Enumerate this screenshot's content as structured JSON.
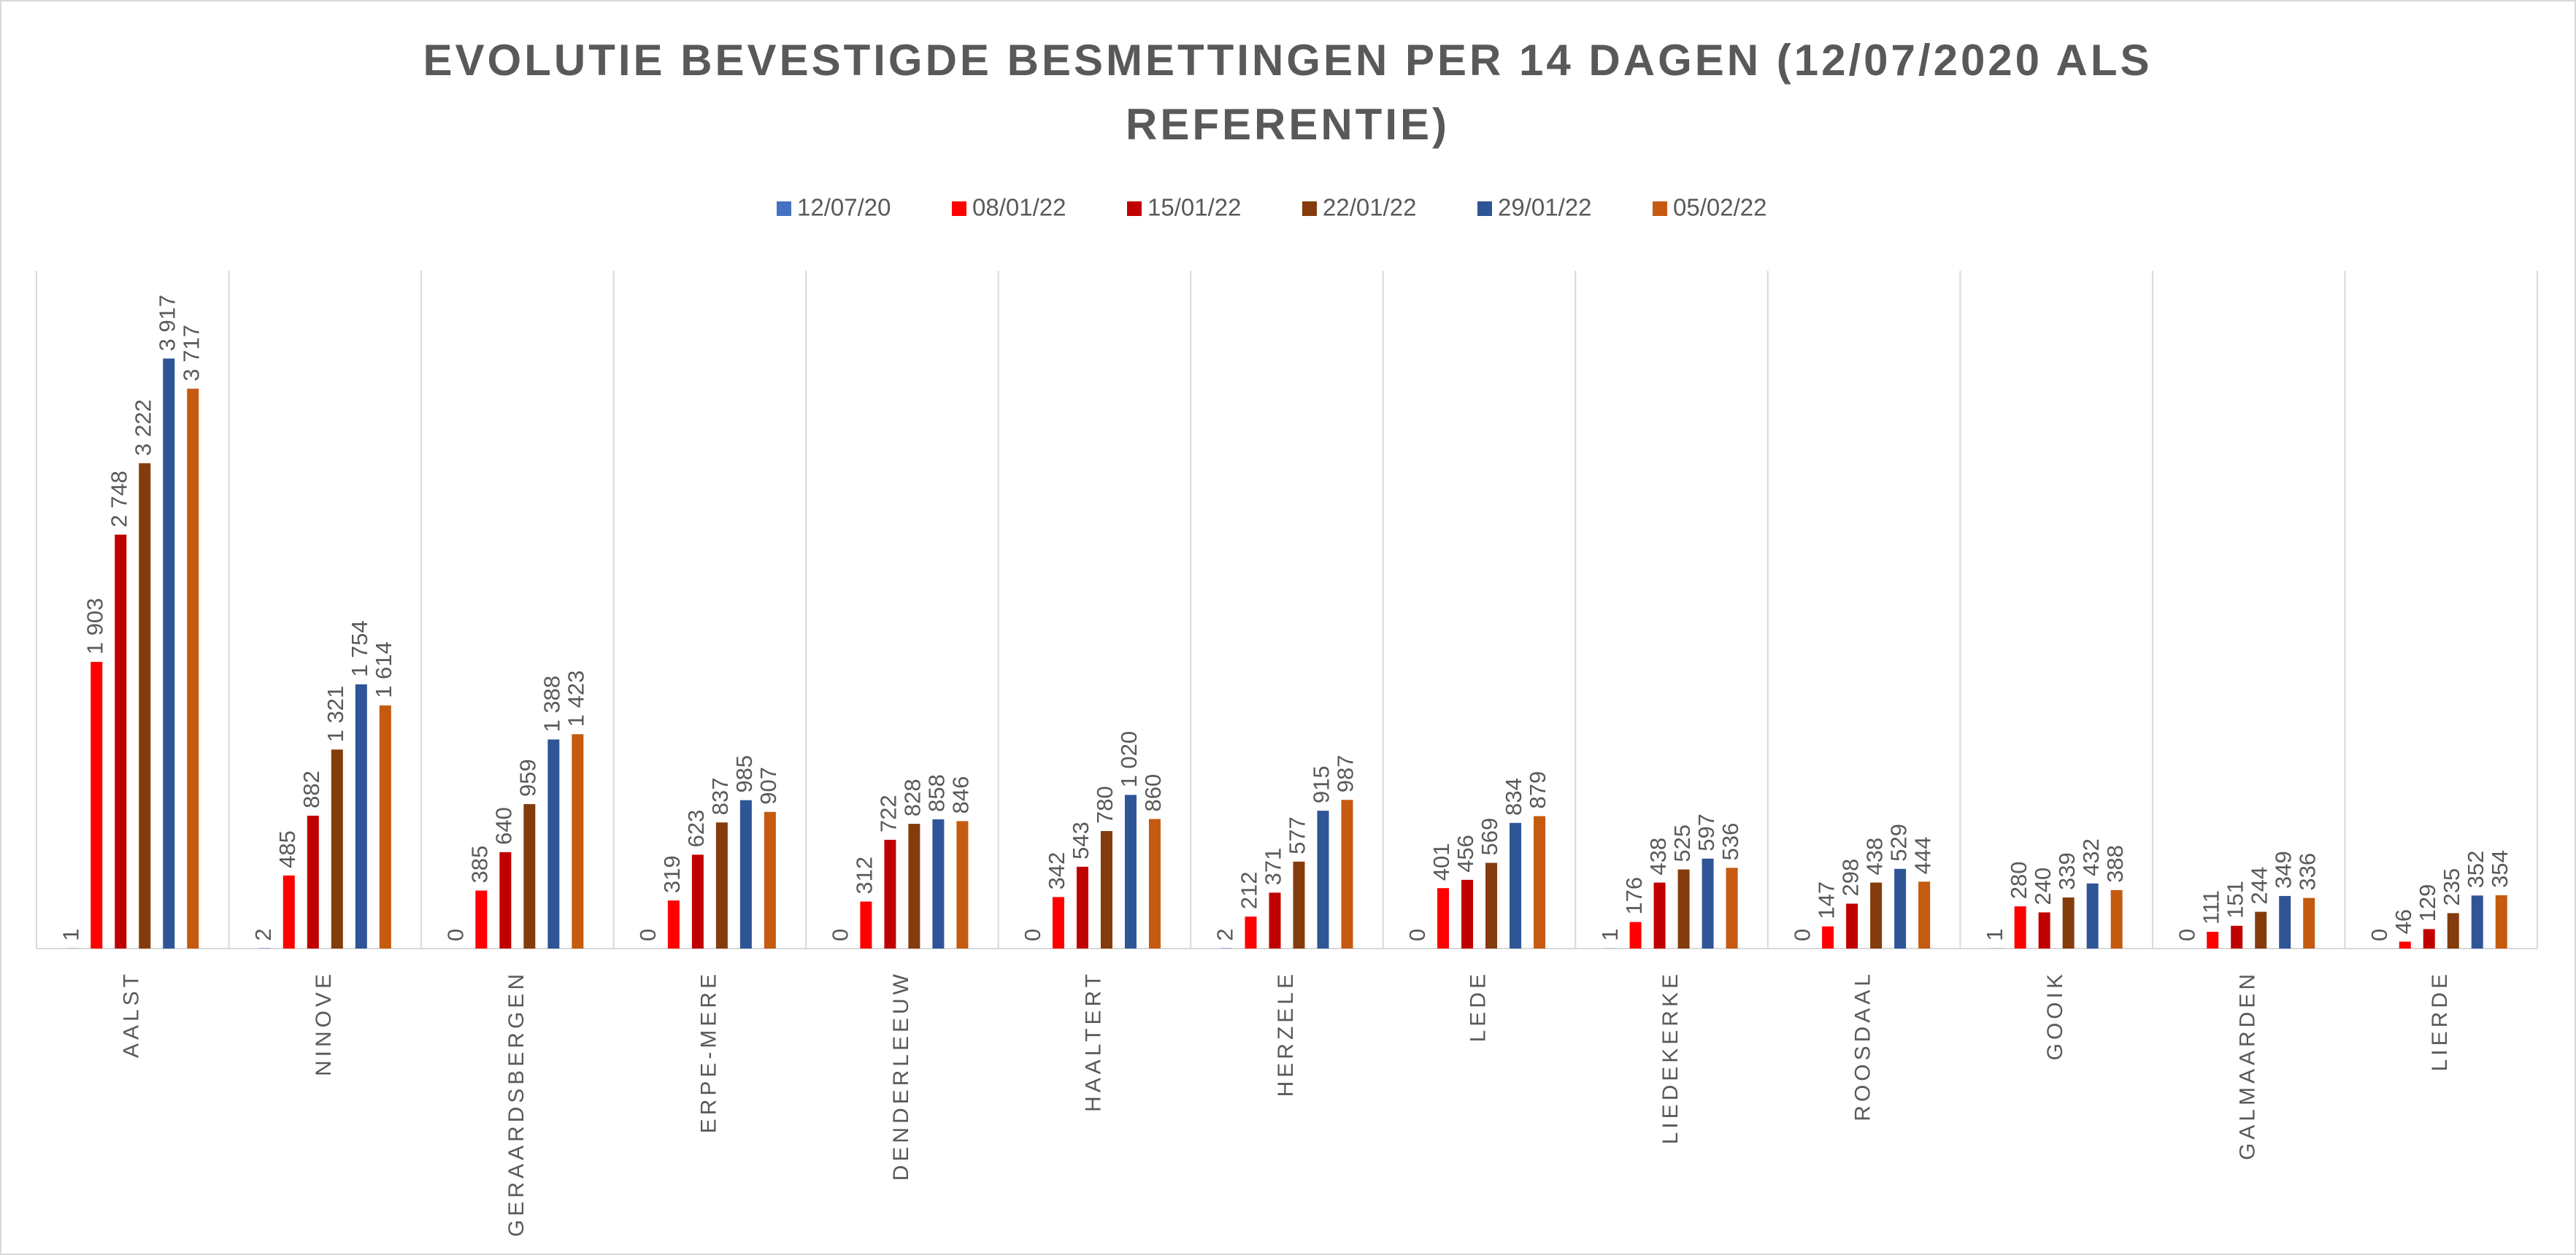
{
  "chart_data": {
    "type": "bar",
    "title": [
      "EVOLUTIE BEVESTIGDE BESMETTINGEN PER 14 DAGEN (12/07/2020 ALS",
      "REFERENTIE)"
    ],
    "categories": [
      "AALST",
      "NINOVE",
      "GERAARDSBERGEN",
      "ERPE-MERE",
      "DENDERLEEUW",
      "HAALTERT",
      "HERZELE",
      "LEDE",
      "LIEDEKERKE",
      "ROOSDAAL",
      "GOOIK",
      "GALMAARDEN",
      "LIERDE"
    ],
    "series": [
      {
        "name": "12/07/20",
        "color": "#4472c4",
        "values": [
          1,
          2,
          0,
          0,
          0,
          0,
          2,
          0,
          1,
          0,
          1,
          0,
          0
        ]
      },
      {
        "name": "08/01/22",
        "color": "#ff0000",
        "values": [
          1903,
          485,
          385,
          319,
          312,
          342,
          212,
          401,
          176,
          147,
          280,
          111,
          46
        ],
        "value_labels": [
          "1 903",
          "485",
          "385",
          "319",
          "312",
          "342",
          "212",
          "401",
          "176",
          "147",
          "280",
          "111",
          "46"
        ]
      },
      {
        "name": "15/01/22",
        "color": "#c00000",
        "values": [
          2748,
          882,
          640,
          623,
          722,
          543,
          371,
          456,
          438,
          298,
          240,
          151,
          129
        ],
        "value_labels": [
          "2 748",
          "882",
          "640",
          "623",
          "722",
          "543",
          "371",
          "456",
          "438",
          "298",
          "240",
          "151",
          "129"
        ]
      },
      {
        "name": "22/01/22",
        "color": "#843c0c",
        "values": [
          3222,
          1321,
          959,
          837,
          828,
          780,
          577,
          569,
          525,
          438,
          339,
          244,
          235
        ],
        "value_labels": [
          "3 222",
          "1 321",
          "959",
          "837",
          "828",
          "780",
          "577",
          "569",
          "525",
          "438",
          "339",
          "244",
          "235"
        ]
      },
      {
        "name": "29/01/22",
        "color": "#2f5597",
        "values": [
          3917,
          1754,
          1388,
          985,
          858,
          1020,
          915,
          834,
          597,
          529,
          432,
          349,
          352
        ],
        "value_labels": [
          "3 917",
          "1 754",
          "1 388",
          "985",
          "858",
          "1 020",
          "915",
          "834",
          "597",
          "529",
          "432",
          "349",
          "352"
        ]
      },
      {
        "name": "05/02/22",
        "color": "#c55a11",
        "values": [
          3717,
          1614,
          1423,
          907,
          846,
          860,
          987,
          879,
          536,
          444,
          388,
          336,
          354
        ],
        "value_labels": [
          "3 717",
          "1 614",
          "1 423",
          "907",
          "846",
          "860",
          "987",
          "879",
          "536",
          "444",
          "388",
          "336",
          "354"
        ]
      }
    ],
    "ylim": [
      0,
      4500
    ]
  }
}
